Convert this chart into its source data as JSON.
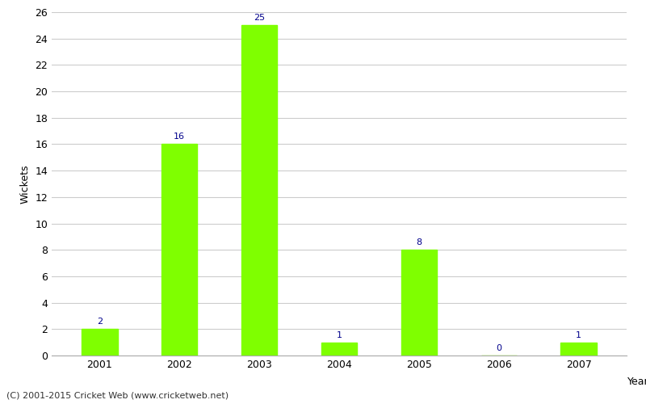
{
  "years": [
    "2001",
    "2002",
    "2003",
    "2004",
    "2005",
    "2006",
    "2007"
  ],
  "values": [
    2,
    16,
    25,
    1,
    8,
    0,
    1
  ],
  "bar_color": "#7fff00",
  "label_color": "#00008b",
  "xlabel": "Year",
  "ylabel": "Wickets",
  "ylim": [
    0,
    26
  ],
  "yticks": [
    0,
    2,
    4,
    6,
    8,
    10,
    12,
    14,
    16,
    18,
    20,
    22,
    24,
    26
  ],
  "footer": "(C) 2001-2015 Cricket Web (www.cricketweb.net)",
  "background_color": "#ffffff",
  "grid_color": "#cccccc",
  "label_fontsize": 8,
  "axis_fontsize": 9,
  "footer_fontsize": 8,
  "bar_width": 0.45
}
